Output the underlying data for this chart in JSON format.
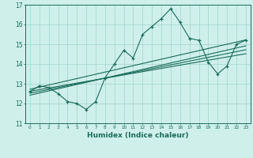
{
  "title": "",
  "xlabel": "Humidex (Indice chaleur)",
  "bg_color": "#cff0ea",
  "grid_color": "#a8d8d0",
  "line_color": "#1a6b5a",
  "x_data": [
    0,
    1,
    2,
    3,
    4,
    5,
    6,
    7,
    8,
    9,
    10,
    11,
    12,
    13,
    14,
    15,
    16,
    17,
    18,
    19,
    20,
    21,
    22,
    23
  ],
  "y_data": [
    12.6,
    12.9,
    12.8,
    12.5,
    12.1,
    12.0,
    11.7,
    12.1,
    13.3,
    14.0,
    14.7,
    14.3,
    15.5,
    15.9,
    16.3,
    16.8,
    16.1,
    15.3,
    15.2,
    14.1,
    13.5,
    13.9,
    15.0,
    15.2
  ],
  "ylim": [
    11,
    17
  ],
  "xlim": [
    -0.5,
    23.5
  ],
  "reg_lines": [
    [
      12.62,
      14.52
    ],
    [
      12.52,
      14.72
    ],
    [
      12.42,
      14.92
    ],
    [
      12.72,
      15.22
    ]
  ]
}
